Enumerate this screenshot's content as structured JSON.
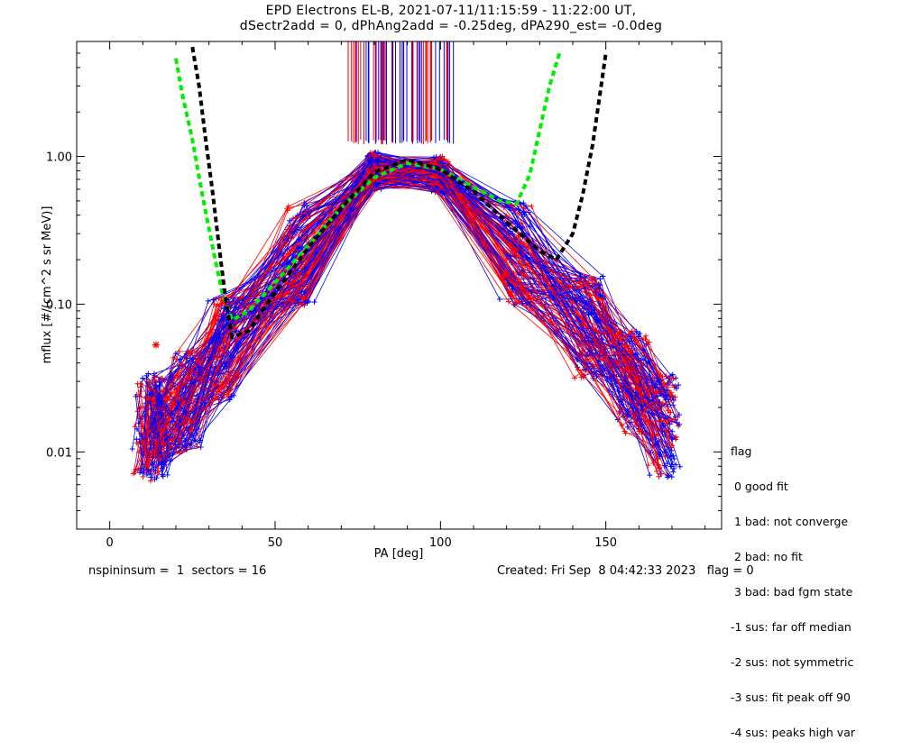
{
  "title": {
    "line1": "EPD Electrons EL-B, 2021-07-11/11:15:59 - 11:22:00 UT,",
    "line2": "dSectr2add = 0, dPhAng2add = -0.25deg, dPA290_est=  -0.0deg"
  },
  "footer": {
    "left": "nspininsum =  1  sectors = 16",
    "right": "Created: Fri Sep  8 04:42:33 2023   flag = 0"
  },
  "legend": {
    "title": "flag",
    "items": [
      " 0 good fit",
      " 1 bad: not converge",
      " 2 bad: no fit",
      " 3 bad: bad fgm state",
      "-1 sus: far off median",
      "-2 sus: not symmetric",
      "-3 sus: fit peak off 90",
      "-4 sus: peaks high var"
    ]
  },
  "colors": {
    "series_a": "#ff0000",
    "series_b": "#0000ff",
    "fit_green": "#00ee00",
    "fit_black": "#000000"
  },
  "chart_data": {
    "type": "line",
    "xlabel": "PA [deg]",
    "ylabel": "mflux [#/(cm^2 s sr MeV)]",
    "xlim": [
      -10,
      185
    ],
    "ylim": [
      0.003,
      6.0
    ],
    "yscale": "log",
    "x_ticks": [
      0,
      50,
      100,
      150
    ],
    "x_tick_labels": [
      "0",
      "50",
      "100",
      "150"
    ],
    "y_ticks": [
      0.01,
      0.1,
      1.0
    ],
    "y_tick_labels": [
      "0.01",
      "0.10",
      "1.00"
    ],
    "sectors_pa": [
      12,
      14,
      23,
      35,
      57,
      80,
      100,
      123,
      145,
      158,
      168
    ],
    "fit_curves": [
      {
        "name": "green",
        "x": [
          20,
          22,
          25,
          28,
          31,
          34,
          37,
          42,
          50,
          60,
          70,
          80,
          90,
          100,
          110,
          118,
          123,
          127,
          130,
          133,
          136
        ],
        "y": [
          4.6,
          2.6,
          1.3,
          0.55,
          0.25,
          0.12,
          0.078,
          0.09,
          0.14,
          0.25,
          0.45,
          0.72,
          0.9,
          0.82,
          0.62,
          0.5,
          0.48,
          0.75,
          1.5,
          3.0,
          5.0
        ]
      },
      {
        "name": "black",
        "x": [
          25,
          27,
          29,
          31,
          33,
          35,
          37,
          42,
          50,
          60,
          70,
          80,
          90,
          100,
          110,
          120,
          130,
          135,
          140,
          143,
          146,
          150
        ],
        "y": [
          5.5,
          3.0,
          1.3,
          0.6,
          0.25,
          0.11,
          0.06,
          0.066,
          0.12,
          0.24,
          0.45,
          0.78,
          0.95,
          0.82,
          0.58,
          0.36,
          0.23,
          0.2,
          0.3,
          0.55,
          1.2,
          5.0
        ]
      }
    ],
    "star_marker": {
      "x": 14,
      "y": 0.053
    }
  }
}
